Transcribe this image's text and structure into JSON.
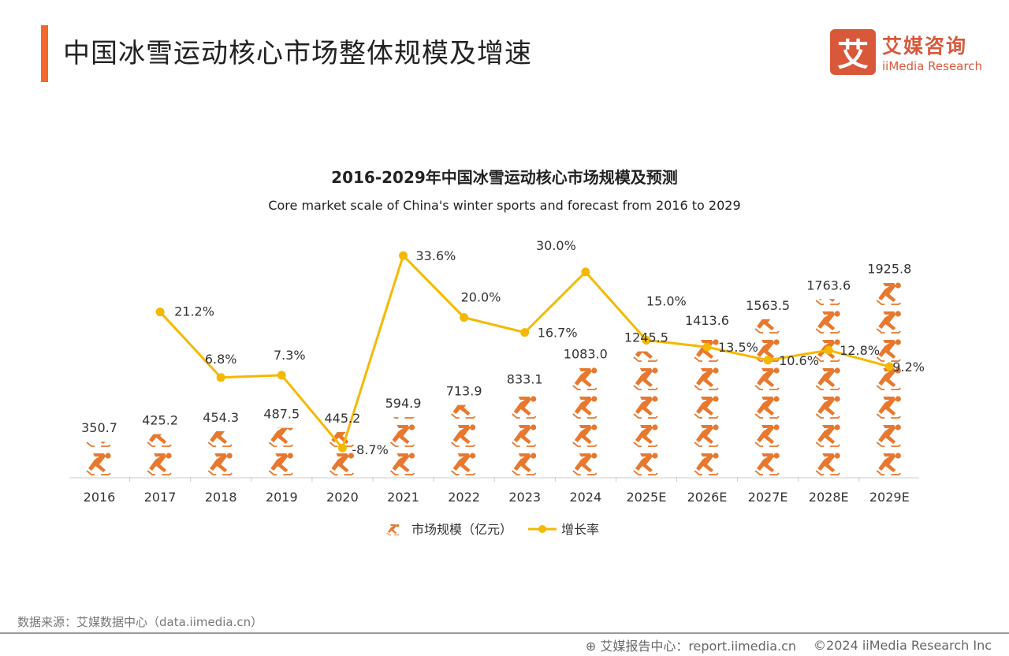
{
  "header": {
    "title": "中国冰雪运动核心市场整体规模及增速"
  },
  "logo": {
    "mark": "艾",
    "cn": "艾媒咨询",
    "en": "iiMedia Research"
  },
  "source": "数据来源：艾媒数据中心（data.iimedia.cn）",
  "footer": {
    "report": "艾媒报告中心：report.iimedia.cn",
    "copyright": "©2024  iiMedia Research  Inc",
    "icon": "globe-icon"
  },
  "colors": {
    "accent": "#f2672a",
    "bars": "#e8782e",
    "line": "#f5b800",
    "brand": "#d9583a"
  },
  "chart_data": {
    "type": "bar+line",
    "title": "2016-2029年中国冰雪运动核心市场规模及预测",
    "subtitle": "Core market scale of China's winter sports and forecast from 2016 to 2029",
    "categories": [
      "2016",
      "2017",
      "2018",
      "2019",
      "2020",
      "2021",
      "2022",
      "2023",
      "2024",
      "2025E",
      "2026E",
      "2027E",
      "2028E",
      "2029E"
    ],
    "series": [
      {
        "name": "市场规模（亿元）",
        "type": "pictograph-bar",
        "icon": "skater-icon",
        "values": [
          350.7,
          425.2,
          454.3,
          487.5,
          445.2,
          594.9,
          713.9,
          833.1,
          1083.0,
          1245.5,
          1413.6,
          1563.5,
          1763.6,
          1925.8
        ],
        "labels": [
          "350.7",
          "425.2",
          "454.3",
          "487.5",
          "445.2",
          "594.9",
          "713.9",
          "833.1",
          "1083.0",
          "1245.5",
          "1413.6",
          "1563.5",
          "1763.6",
          "1925.8"
        ]
      },
      {
        "name": "增长率",
        "type": "line",
        "values": [
          null,
          21.2,
          6.8,
          7.3,
          -8.7,
          33.6,
          20.0,
          16.7,
          30.0,
          15.0,
          13.5,
          10.6,
          12.8,
          9.2
        ],
        "labels": [
          "",
          "21.2%",
          "6.8%",
          "7.3%",
          "-8.7%",
          "33.6%",
          "20.0%",
          "16.7%",
          "30.0%",
          "15.0%",
          "13.5%",
          "10.6%",
          "12.8%",
          "9.2%"
        ]
      }
    ],
    "legend": "bottom",
    "grid": false
  }
}
